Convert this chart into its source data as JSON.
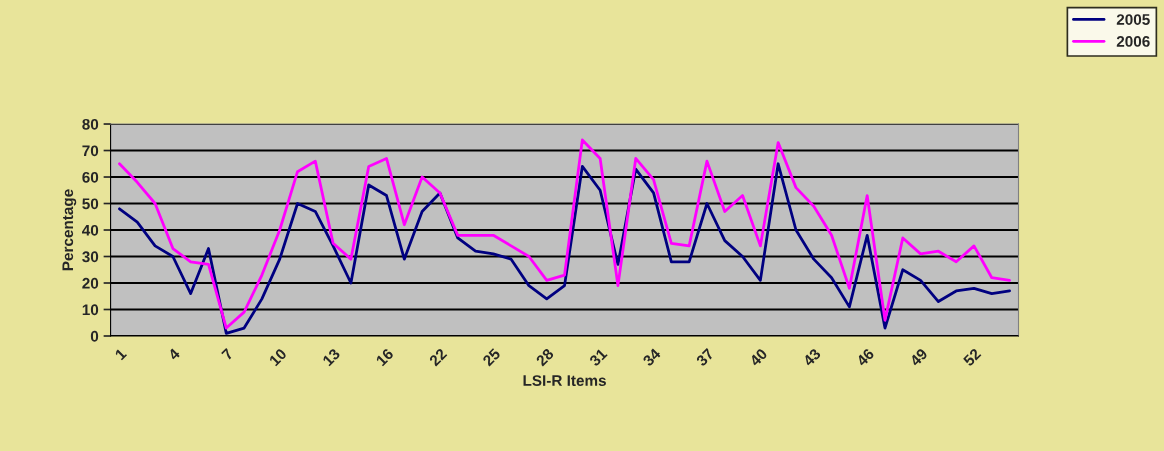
{
  "chart_data": {
    "type": "line",
    "xlabel": "LSI-R Items",
    "ylabel": "Percentage",
    "categories": [
      "1",
      null,
      null,
      "4",
      null,
      null,
      "7",
      null,
      null,
      "10",
      null,
      null,
      "13",
      null,
      null,
      "16",
      null,
      null,
      "22",
      null,
      null,
      "25",
      null,
      null,
      "28",
      null,
      null,
      "31",
      null,
      null,
      "34",
      null,
      null,
      "37",
      null,
      null,
      "40",
      null,
      null,
      "43",
      null,
      null,
      "46",
      null,
      null,
      "49",
      null,
      null,
      "52",
      null,
      null
    ],
    "series": [
      {
        "name": "2005",
        "color": "#000080",
        "values": [
          48,
          43,
          34,
          30,
          16,
          33,
          1,
          3,
          14,
          29,
          50,
          47,
          34,
          20,
          57,
          53,
          29,
          47,
          54,
          37,
          32,
          31,
          29,
          19,
          14,
          19,
          64,
          55,
          27,
          63,
          54,
          28,
          28,
          50,
          36,
          30,
          21,
          65,
          40,
          29,
          22,
          11,
          38,
          3,
          25,
          21,
          13,
          17,
          18,
          16,
          17
        ]
      },
      {
        "name": "2006",
        "color": "#ff00ff",
        "values": [
          65,
          58,
          50,
          33,
          28,
          27,
          3,
          9,
          23,
          40,
          62,
          66,
          35,
          29,
          64,
          67,
          42,
          60,
          54,
          38,
          38,
          38,
          34,
          30,
          21,
          23,
          74,
          67,
          19,
          67,
          59,
          35,
          34,
          66,
          47,
          53,
          34,
          73,
          56,
          49,
          38,
          18,
          53,
          6,
          37,
          31,
          32,
          28,
          34,
          22,
          21
        ]
      }
    ],
    "ylim": [
      0,
      80
    ],
    "yticks": [
      0,
      10,
      20,
      30,
      40,
      50,
      60,
      70,
      80
    ],
    "grid": "y",
    "legend": "top right"
  }
}
